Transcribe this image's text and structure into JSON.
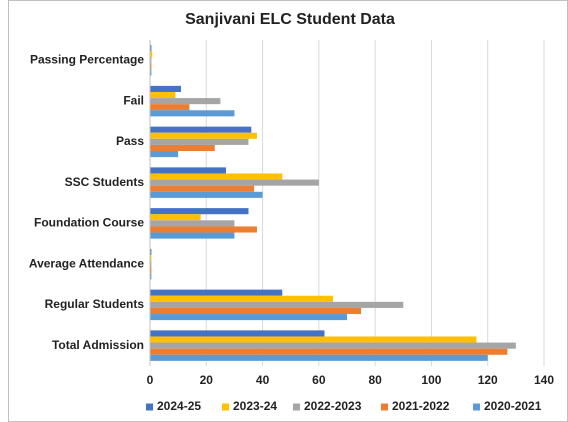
{
  "chart_data": {
    "type": "hbar",
    "title": "Sanjivani ELC Student Data",
    "categories": [
      "Passing Percentage",
      "Fail",
      "Pass",
      "SSC Students",
      "Foundation Course",
      "Average Attendance",
      "Regular Students",
      "Total Admission"
    ],
    "series": [
      {
        "name": "2024-25",
        "color": "#4472c4",
        "values": [
          0.5,
          11,
          36,
          27,
          35,
          0.5,
          47,
          62
        ]
      },
      {
        "name": "2023-24",
        "color": "#ffc000",
        "values": [
          0.8,
          9,
          38,
          47,
          18,
          0.5,
          65,
          116
        ]
      },
      {
        "name": "2022-2023",
        "color": "#a5a5a5",
        "values": [
          0.5,
          25,
          35,
          60,
          30,
          0.5,
          90,
          130
        ]
      },
      {
        "name": "2021-2022",
        "color": "#ed7d31",
        "values": [
          0.5,
          14,
          23,
          37,
          38,
          0.5,
          75,
          127
        ]
      },
      {
        "name": "2020-2021",
        "color": "#5b9bd5",
        "values": [
          0.5,
          30,
          10,
          40,
          30,
          0.5,
          70,
          120
        ]
      }
    ],
    "xlim": [
      0,
      140
    ],
    "xticks": [
      0,
      20,
      40,
      60,
      80,
      100,
      120,
      140
    ],
    "grid": true,
    "legend": "bottom"
  }
}
